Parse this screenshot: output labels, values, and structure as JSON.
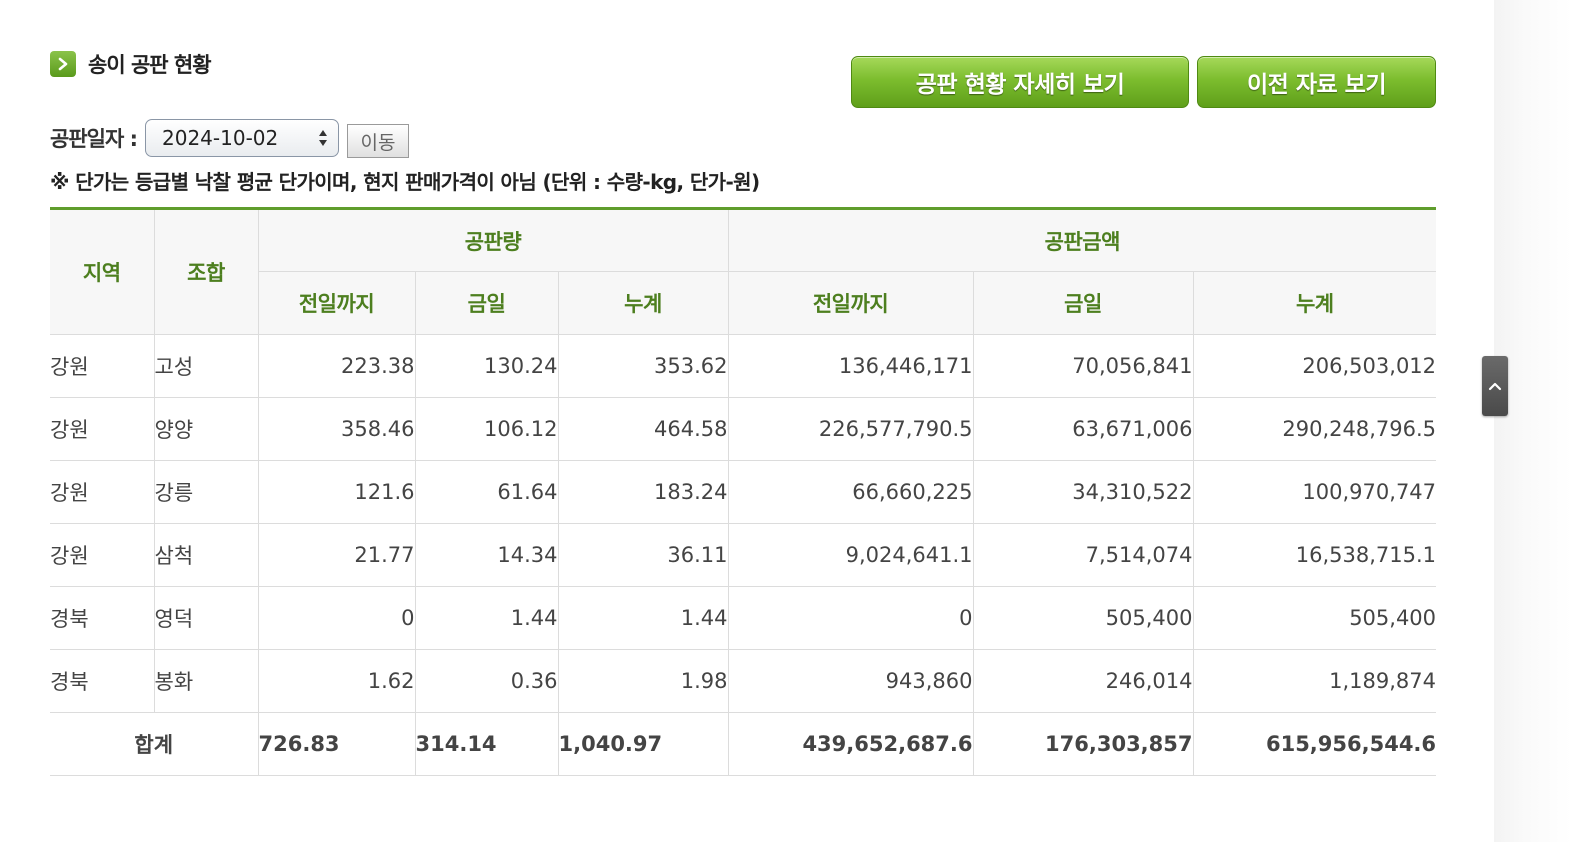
{
  "header": {
    "title": "송이 공판 현황",
    "btn_detail": "공판 현황 자세히 보기",
    "btn_prev": "이전 자료 보기"
  },
  "filter": {
    "date_label": "공판일자 :",
    "date_value": "2024-10-02",
    "move_label": "이동"
  },
  "note": "※ 단가는 등급별 낙찰 평균 단가이며, 현지 판매가격이 아님 (단위 : 수량-kg, 단가-원)",
  "table": {
    "headers": {
      "region": "지역",
      "union": "조합",
      "volume": "공판량",
      "amount": "공판금액",
      "prev": "전일까지",
      "today": "금일",
      "cum": "누계"
    },
    "rows": [
      {
        "region": "강원",
        "union": "고성",
        "v_prev": "223.38",
        "v_today": "130.24",
        "v_cum": "353.62",
        "a_prev": "136,446,171",
        "a_today": "70,056,841",
        "a_cum": "206,503,012"
      },
      {
        "region": "강원",
        "union": "양양",
        "v_prev": "358.46",
        "v_today": "106.12",
        "v_cum": "464.58",
        "a_prev": "226,577,790.5",
        "a_today": "63,671,006",
        "a_cum": "290,248,796.5"
      },
      {
        "region": "강원",
        "union": "강릉",
        "v_prev": "121.6",
        "v_today": "61.64",
        "v_cum": "183.24",
        "a_prev": "66,660,225",
        "a_today": "34,310,522",
        "a_cum": "100,970,747"
      },
      {
        "region": "강원",
        "union": "삼척",
        "v_prev": "21.77",
        "v_today": "14.34",
        "v_cum": "36.11",
        "a_prev": "9,024,641.1",
        "a_today": "7,514,074",
        "a_cum": "16,538,715.1"
      },
      {
        "region": "경북",
        "union": "영덕",
        "v_prev": "0",
        "v_today": "1.44",
        "v_cum": "1.44",
        "a_prev": "0",
        "a_today": "505,400",
        "a_cum": "505,400"
      },
      {
        "region": "경북",
        "union": "봉화",
        "v_prev": "1.62",
        "v_today": "0.36",
        "v_cum": "1.98",
        "a_prev": "943,860",
        "a_today": "246,014",
        "a_cum": "1,189,874"
      }
    ],
    "total": {
      "label": "합계",
      "v_prev": "726.83",
      "v_today": "314.14",
      "v_cum": "1,040.97",
      "a_prev": "439,652,687.6",
      "a_today": "176,303,857",
      "a_cum": "615,956,544.6"
    }
  },
  "colors": {
    "accent_green": "#5f9d2c",
    "header_text": "#4d7f1f"
  },
  "icons": {
    "title": "chevron-right-icon",
    "scroll": "chevron-up-icon"
  }
}
